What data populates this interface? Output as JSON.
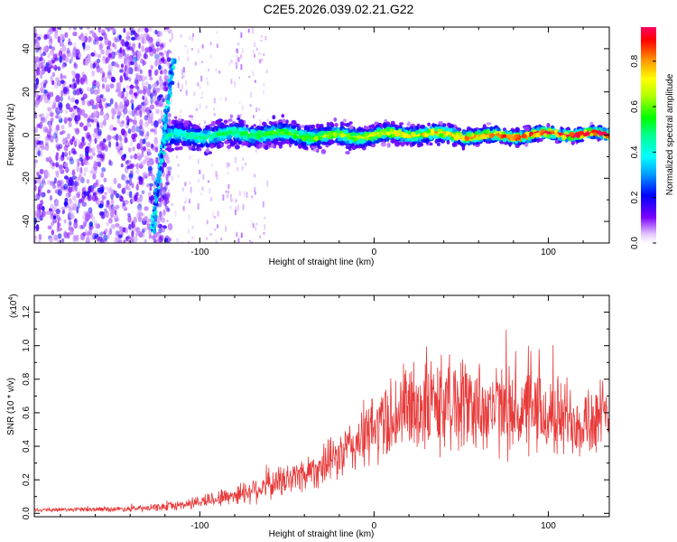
{
  "figure_title": "C2E5.2026.039.02.21.G22",
  "chart_data": [
    {
      "type": "heatmap",
      "xlabel": "Height of straight line (km)",
      "ylabel": "Frequency (Hz)",
      "xlim": [
        -195,
        135
      ],
      "ylim": [
        -50,
        50
      ],
      "xticks": [
        -100,
        0,
        100
      ],
      "yticks": [
        -40,
        -20,
        0,
        20,
        40
      ],
      "colorbar": {
        "label": "Normalized spectral amplitude",
        "range": [
          0,
          0.95
        ],
        "ticks": [
          0.0,
          0.2,
          0.4,
          0.6,
          0.8
        ],
        "tick_labels": [
          "0.0",
          "0.2",
          "0.4",
          "0.6",
          "0.8"
        ]
      },
      "features": [
        {
          "name": "broadband noise region",
          "x_range": [
            -195,
            -120
          ],
          "level": "low"
        },
        {
          "name": "dispersed chirp",
          "x_range": [
            -127,
            -115
          ],
          "y_range": [
            -45,
            35
          ]
        },
        {
          "name": "carrier line",
          "x_range": [
            -120,
            135
          ],
          "y_center": 0,
          "level": "high"
        }
      ]
    },
    {
      "type": "line",
      "xlabel": "Height of straight line (km)",
      "ylabel": "SNR (10 * v/v)",
      "scale_label": "(x10",
      "scale_exponent": "4",
      "xlim": [
        -195,
        135
      ],
      "ylim": [
        -0.02,
        1.3
      ],
      "xticks": [
        -100,
        0,
        100
      ],
      "yticks": [
        0.0,
        0.2,
        0.4,
        0.6,
        0.8,
        1.0,
        1.2
      ],
      "ytick_labels": [
        "0.0",
        "0.2",
        "0.4",
        "0.6",
        "0.8",
        "1.0",
        "1.2"
      ],
      "series": [
        {
          "name": "SNR",
          "color": "#e83a3a",
          "x": [
            -195,
            -150,
            -130,
            -110,
            -100,
            -90,
            -80,
            -70,
            -60,
            -50,
            -40,
            -30,
            -20,
            -10,
            0,
            10,
            20,
            30,
            40,
            50,
            60,
            70,
            80,
            90,
            100,
            110,
            120,
            135
          ],
          "y": [
            0.02,
            0.025,
            0.03,
            0.05,
            0.07,
            0.09,
            0.11,
            0.14,
            0.17,
            0.2,
            0.24,
            0.28,
            0.34,
            0.42,
            0.5,
            0.58,
            0.63,
            0.65,
            0.66,
            0.66,
            0.64,
            0.62,
            0.6,
            0.6,
            0.58,
            0.57,
            0.56,
            0.56
          ],
          "spread": [
            0.01,
            0.015,
            0.02,
            0.03,
            0.04,
            0.05,
            0.06,
            0.08,
            0.09,
            0.1,
            0.11,
            0.12,
            0.14,
            0.18,
            0.22,
            0.26,
            0.28,
            0.3,
            0.3,
            0.29,
            0.28,
            0.27,
            0.26,
            0.26,
            0.25,
            0.25,
            0.24,
            0.24
          ]
        }
      ]
    }
  ]
}
